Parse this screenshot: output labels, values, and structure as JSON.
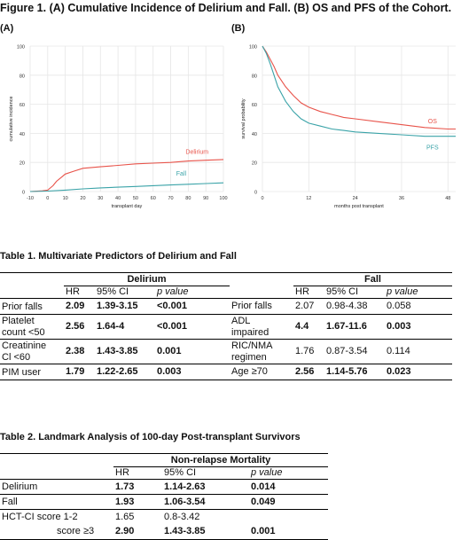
{
  "figure": {
    "title": "Figure 1. (A) Cumulative Incidence of Delirium and Fall. (B) OS and PFS of the Cohort.",
    "panel_a_label": "(A)",
    "panel_b_label": "(B)"
  },
  "colors": {
    "red": "#e8534a",
    "teal": "#3aa3a8",
    "grid": "#e6e6e6",
    "panel_bg": "#ffffff"
  },
  "chart_data": [
    {
      "type": "line",
      "xlabel": "transplant day",
      "ylabel": "cumulative incidence",
      "xlim": [
        -10,
        100
      ],
      "ylim": [
        0,
        100
      ],
      "xticks": [
        -10,
        0,
        10,
        20,
        30,
        40,
        50,
        60,
        70,
        80,
        90,
        100
      ],
      "yticks": [
        0,
        20,
        40,
        60,
        80,
        100
      ],
      "grid": true,
      "series": [
        {
          "name": "Delirium",
          "color": "#e8534a",
          "points": [
            [
              -10,
              0
            ],
            [
              -3,
              0.5
            ],
            [
              0,
              1
            ],
            [
              3,
              4
            ],
            [
              5,
              7
            ],
            [
              8,
              10
            ],
            [
              10,
              12
            ],
            [
              15,
              14
            ],
            [
              20,
              16
            ],
            [
              30,
              17
            ],
            [
              40,
              18
            ],
            [
              50,
              19
            ],
            [
              60,
              19.5
            ],
            [
              70,
              20
            ],
            [
              80,
              21
            ],
            [
              90,
              21.5
            ],
            [
              100,
              22
            ]
          ]
        },
        {
          "name": "Fall",
          "color": "#3aa3a8",
          "points": [
            [
              -10,
              0
            ],
            [
              0,
              0.3
            ],
            [
              10,
              1
            ],
            [
              20,
              1.8
            ],
            [
              30,
              2.5
            ],
            [
              40,
              3
            ],
            [
              50,
              3.5
            ],
            [
              60,
              4
            ],
            [
              70,
              4.5
            ],
            [
              80,
              5
            ],
            [
              90,
              5.5
            ],
            [
              100,
              6
            ]
          ]
        }
      ]
    },
    {
      "type": "line",
      "xlabel": "months post transplant",
      "ylabel": "survival probability",
      "xlim": [
        0,
        50
      ],
      "ylim": [
        0,
        100
      ],
      "xticks": [
        0,
        12,
        24,
        36,
        48
      ],
      "yticks": [
        0,
        20,
        40,
        60,
        80,
        100
      ],
      "grid": true,
      "series": [
        {
          "name": "OS",
          "color": "#e8534a",
          "points": [
            [
              0,
              100
            ],
            [
              1,
              96
            ],
            [
              2,
              91
            ],
            [
              3,
              86
            ],
            [
              4,
              80
            ],
            [
              6,
              72
            ],
            [
              8,
              66
            ],
            [
              10,
              61
            ],
            [
              12,
              58
            ],
            [
              15,
              55
            ],
            [
              18,
              53
            ],
            [
              21,
              51
            ],
            [
              24,
              50
            ],
            [
              30,
              48
            ],
            [
              36,
              46
            ],
            [
              42,
              44
            ],
            [
              48,
              43
            ],
            [
              50,
              43
            ]
          ]
        },
        {
          "name": "PFS",
          "color": "#3aa3a8",
          "points": [
            [
              0,
              100
            ],
            [
              1,
              95
            ],
            [
              2,
              88
            ],
            [
              3,
              80
            ],
            [
              4,
              72
            ],
            [
              6,
              62
            ],
            [
              8,
              55
            ],
            [
              10,
              50
            ],
            [
              12,
              47
            ],
            [
              15,
              45
            ],
            [
              18,
              43
            ],
            [
              21,
              42
            ],
            [
              24,
              41
            ],
            [
              30,
              40
            ],
            [
              36,
              39
            ],
            [
              42,
              38
            ],
            [
              48,
              38
            ],
            [
              50,
              38
            ]
          ]
        }
      ]
    }
  ],
  "table1": {
    "title": "Table 1. Multivariate Predictors of Delirium and Fall",
    "delirium_header": "Delirium",
    "fall_header": "Fall",
    "col_hr": "HR",
    "col_ci": "95% CI",
    "col_p": "p value",
    "rows": [
      {
        "d_label": "Prior falls",
        "d_label2": "",
        "d_hr": "2.09",
        "d_ci": "1.39-3.15",
        "d_p": "<0.001",
        "f_label": "Prior falls",
        "f_label2": "",
        "f_hr": "2.07",
        "f_ci": "0.98-4.38",
        "f_p": "0.058"
      },
      {
        "d_label": "Platelet",
        "d_label2": "count <50",
        "d_hr": "2.56",
        "d_ci": "1.64-4",
        "d_p": "<0.001",
        "f_label": "ADL",
        "f_label2": "impaired",
        "f_hr": "4.4",
        "f_ci": "1.67-11.6",
        "f_p": "0.003"
      },
      {
        "d_label": "Creatinine",
        "d_label2": "Cl <60",
        "d_hr": "2.38",
        "d_ci": "1.43-3.85",
        "d_p": "0.001",
        "f_label": "RIC/NMA",
        "f_label2": "regimen",
        "f_hr": "1.76",
        "f_ci": "0.87-3.54",
        "f_p": "0.114"
      },
      {
        "d_label": "PIM user",
        "d_label2": "",
        "d_hr": "1.79",
        "d_ci": "1.22-2.65",
        "d_p": "0.003",
        "f_label": "Age ≥70",
        "f_label2": "",
        "f_hr": "2.56",
        "f_ci": "1.14-5.76",
        "f_p": "0.023"
      }
    ]
  },
  "table2": {
    "title": "Table 2. Landmark Analysis of 100-day Post-transplant Survivors",
    "group_header": "Non-relapse Mortality",
    "col_hr": "HR",
    "col_ci": "95% CI",
    "col_p": "p value",
    "rows": [
      {
        "label": "Delirium",
        "hr": "1.73",
        "ci": "1.14-2.63",
        "p": "0.014"
      },
      {
        "label": "Fall",
        "hr": "1.93",
        "ci": "1.06-3.54",
        "p": "0.049"
      },
      {
        "label": "HCT-CI score 1-2",
        "hr": "1.65",
        "ci": "0.8-3.42",
        "p": ""
      },
      {
        "label": "score ≥3",
        "hr": "2.90",
        "ci": "1.43-3.85",
        "p": "0.001"
      }
    ]
  }
}
